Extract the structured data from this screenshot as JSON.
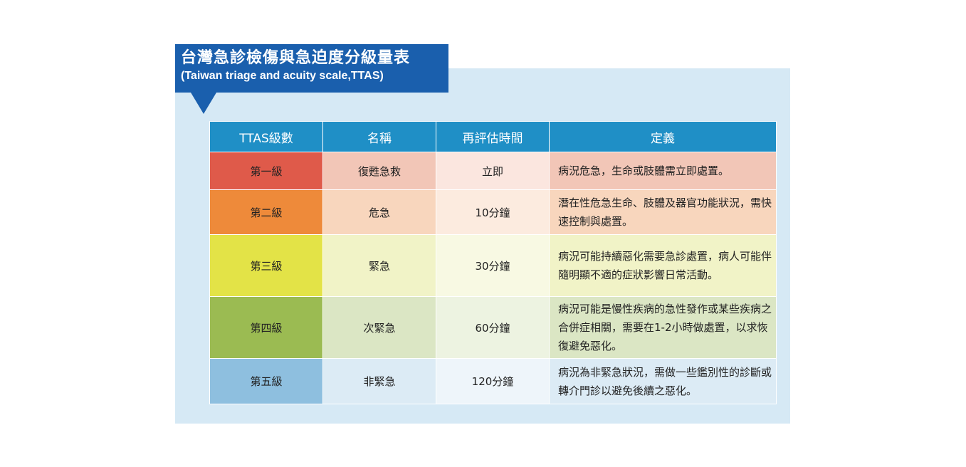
{
  "title": {
    "zh": "台灣急診檢傷與急迫度分級量表",
    "en": "(Taiwan triage and acuity scale,TTAS)"
  },
  "table": {
    "headers": [
      "TTAS級數",
      "名稱",
      "再評估時間",
      "定義"
    ],
    "rows": [
      {
        "level": "第一級",
        "name": "復甦急救",
        "time": "立即",
        "definition": "病況危急，生命或肢體需立即處置。",
        "colors": {
          "level": "#df5a4a",
          "name": "#f2c6b7",
          "time": "#fbe6df",
          "definition": "#f2c6b7"
        }
      },
      {
        "level": "第二級",
        "name": "危急",
        "time": "10分鐘",
        "definition": "潛在性危急生命、肢體及器官功能狀況，需快速控制與處置。",
        "colors": {
          "level": "#ee8a3a",
          "name": "#f8d6bd",
          "time": "#fcebdf",
          "definition": "#f8d6bd"
        }
      },
      {
        "level": "第三級",
        "name": "緊急",
        "time": "30分鐘",
        "definition": "病況可能持續惡化需要急診處置，病人可能伴隨明顯不適的症狀影響日常活動。",
        "colors": {
          "level": "#e3e347",
          "name": "#f1f3c7",
          "time": "#f8f9e3",
          "definition": "#f1f3c7"
        }
      },
      {
        "level": "第四級",
        "name": "次緊急",
        "time": "60分鐘",
        "definition": "病況可能是慢性疾病的急性發作或某些疾病之合併症相關，需要在1-2小時做處置，以求恢復避免惡化。",
        "colors": {
          "level": "#9bbb52",
          "name": "#dbe6c4",
          "time": "#edf3e1",
          "definition": "#dbe6c4"
        }
      },
      {
        "level": "第五級",
        "name": "非緊急",
        "time": "120分鐘",
        "definition": "病況為非緊急狀況，需做一些鑑別性的診斷或轉介門診以避免後續之惡化。",
        "colors": {
          "level": "#8ebfdf",
          "name": "#dcebf5",
          "time": "#eef5fa",
          "definition": "#dcebf5"
        }
      }
    ]
  }
}
